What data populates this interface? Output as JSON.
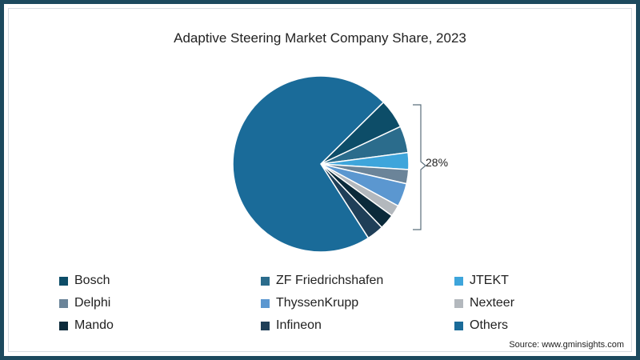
{
  "chart_data": {
    "type": "pie",
    "title": "Adaptive Steering Market Company Share, 2023",
    "annotation": "28%",
    "annotation_note": "Bracket groups the eight named companies totalling 28%",
    "categories": [
      "Bosch",
      "ZF Friedrichshafen",
      "JTEKT",
      "Delphi",
      "ThyssenKrupp",
      "Nexteer",
      "Mando",
      "Infineon",
      "Others"
    ],
    "values": [
      5.4,
      4.9,
      3.1,
      2.6,
      4.3,
      2.1,
      2.8,
      3.1,
      71.7
    ],
    "colors": [
      "#0d4d68",
      "#2b6c8c",
      "#3ea5db",
      "#6b8499",
      "#5b97d0",
      "#b3b8bd",
      "#0b2a3a",
      "#1f3f58",
      "#1a6b99"
    ],
    "start_angle_deg": -44.6,
    "legend_position": "bottom",
    "legend": [
      {
        "label": "Bosch",
        "color": "#0d4d68"
      },
      {
        "label": "ZF Friedrichshafen",
        "color": "#2b6c8c"
      },
      {
        "label": "JTEKT",
        "color": "#3ea5db"
      },
      {
        "label": "Delphi",
        "color": "#6b8499"
      },
      {
        "label": "ThyssenKrupp",
        "color": "#5b97d0"
      },
      {
        "label": "Nexteer",
        "color": "#b3b8bd"
      },
      {
        "label": "Mando",
        "color": "#0b2a3a"
      },
      {
        "label": "Infineon",
        "color": "#1f3f58"
      },
      {
        "label": "Others",
        "color": "#1a6b99"
      }
    ]
  },
  "source": "Source: www.gminsights.com"
}
